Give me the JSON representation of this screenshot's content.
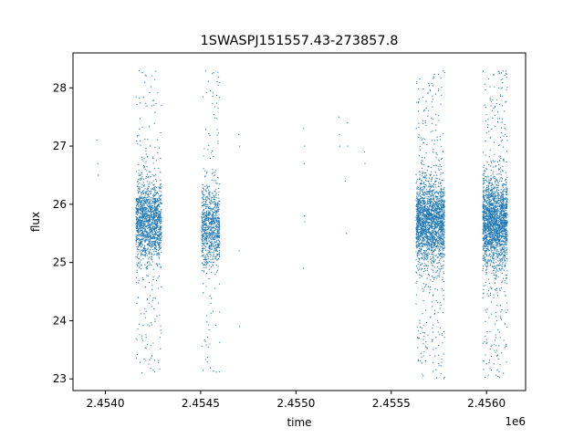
{
  "chart_data": {
    "type": "scatter",
    "title": "1SWASPJ151557.43-273857.8",
    "xlabel": "time",
    "ylabel": "flux",
    "x_offset_label": "1e6",
    "xlim": [
      2453830,
      2456205
    ],
    "ylim": [
      22.8,
      28.6
    ],
    "x_ticks": [
      2.454,
      2.4545,
      2.455,
      2.4555,
      2.456
    ],
    "x_tick_labels": [
      "2.4540",
      "2.4545",
      "2.4550",
      "2.4555",
      "2.4560"
    ],
    "y_ticks": [
      23,
      24,
      25,
      26,
      27,
      28
    ],
    "y_tick_labels": [
      "23",
      "24",
      "25",
      "26",
      "27",
      "28"
    ],
    "grid": false,
    "marker_color": "#1f77b4",
    "series": [
      {
        "clusters": [
          {
            "x_range": [
              2454160,
              2454295
            ],
            "y_center": 25.7,
            "y_spread": 0.35,
            "y_min": 23.1,
            "y_max": 28.3,
            "count": 1600
          },
          {
            "x_range": [
              2454505,
              2454600
            ],
            "y_center": 25.6,
            "y_spread": 0.35,
            "y_min": 23.1,
            "y_max": 28.3,
            "count": 900
          },
          {
            "x_range": [
              2455630,
              2455780
            ],
            "y_center": 25.7,
            "y_spread": 0.35,
            "y_min": 23.0,
            "y_max": 28.3,
            "count": 2300
          },
          {
            "x_range": [
              2455980,
              2456110
            ],
            "y_center": 25.7,
            "y_spread": 0.38,
            "y_min": 23.0,
            "y_max": 28.3,
            "count": 2200
          }
        ],
        "isolated_points": [
          {
            "x": 2453955,
            "y": 27.1
          },
          {
            "x": 2453960,
            "y": 26.7
          },
          {
            "x": 2453962,
            "y": 26.5
          },
          {
            "x": 2454700,
            "y": 27.2
          },
          {
            "x": 2454705,
            "y": 27.0
          },
          {
            "x": 2454702,
            "y": 25.2
          },
          {
            "x": 2454705,
            "y": 23.9
          },
          {
            "x": 2455040,
            "y": 27.3
          },
          {
            "x": 2455045,
            "y": 27.0
          },
          {
            "x": 2455043,
            "y": 26.7
          },
          {
            "x": 2455045,
            "y": 25.8
          },
          {
            "x": 2455046,
            "y": 25.7
          },
          {
            "x": 2455040,
            "y": 24.9
          },
          {
            "x": 2455225,
            "y": 27.5
          },
          {
            "x": 2455228,
            "y": 27.2
          },
          {
            "x": 2455230,
            "y": 27.0
          },
          {
            "x": 2455270,
            "y": 27.4
          },
          {
            "x": 2455272,
            "y": 27.0
          },
          {
            "x": 2455260,
            "y": 26.4
          },
          {
            "x": 2455265,
            "y": 25.5
          },
          {
            "x": 2455360,
            "y": 26.9
          },
          {
            "x": 2455362,
            "y": 26.7
          }
        ]
      }
    ]
  }
}
